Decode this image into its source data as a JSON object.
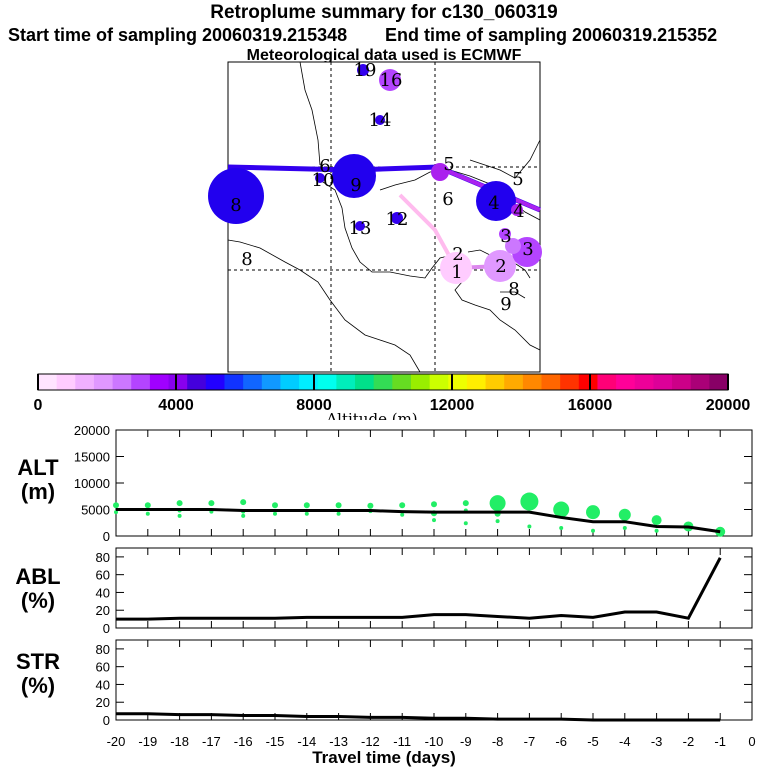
{
  "header": {
    "title": "Retroplume summary for c130_060319",
    "start_sampling": "Start time of sampling 20060319.215348",
    "end_sampling": "End time of sampling 20060319.215352",
    "meteo": "Meteorological data used is ECMWF"
  },
  "colorbar": {
    "label": "Altitude (m)",
    "min": 0,
    "max": 20000,
    "ticks": [
      "0",
      "4000",
      "8000",
      "12000",
      "16000",
      "20000"
    ],
    "colors": [
      "#ffe4ff",
      "#ffccff",
      "#f0b0ff",
      "#e098ff",
      "#cc77ff",
      "#b444ff",
      "#a000ff",
      "#8800ee",
      "#4400dd",
      "#2200ff",
      "#1133ff",
      "#1166ff",
      "#1199ff",
      "#00ccff",
      "#00eeff",
      "#00ffee",
      "#00eebb",
      "#00e08a",
      "#33dd55",
      "#66dd22",
      "#99ee00",
      "#ccff00",
      "#eeff00",
      "#ffee00",
      "#ffcc00",
      "#ffaa00",
      "#ff8800",
      "#ff6600",
      "#ff3300",
      "#ff0000",
      "#ff0077",
      "#ff0099",
      "#ee0099",
      "#dd0099",
      "#cc0088",
      "#aa0077",
      "#880066"
    ]
  },
  "map_labels": [
    {
      "text": "19",
      "alt": 3500
    },
    {
      "text": "16",
      "alt": 3000
    },
    {
      "text": "14",
      "alt": 3500
    },
    {
      "text": "6",
      "alt": 2500
    },
    {
      "text": "10",
      "alt": 3500
    },
    {
      "text": "9",
      "alt": 4000
    },
    {
      "text": "8",
      "alt": 4500
    },
    {
      "text": "5",
      "alt": 2000
    },
    {
      "text": "5",
      "alt": 2000
    },
    {
      "text": "6",
      "alt": 2000
    },
    {
      "text": "4",
      "alt": 4000
    },
    {
      "text": "4",
      "alt": 2500
    },
    {
      "text": "13",
      "alt": 3500
    },
    {
      "text": "12",
      "alt": 3500
    },
    {
      "text": "3",
      "alt": 2500
    },
    {
      "text": "2",
      "alt": 1000
    },
    {
      "text": "3",
      "alt": 2500
    },
    {
      "text": "1",
      "alt": 800
    },
    {
      "text": "2",
      "alt": 2000
    },
    {
      "text": "8",
      "alt": 2000
    },
    {
      "text": "8",
      "alt": 2000
    },
    {
      "text": "9",
      "alt": 2000
    }
  ],
  "chart_data": [
    {
      "type": "scatter",
      "panel": "ALT",
      "ylabel": "ALT (m)",
      "ylim": [
        0,
        20000
      ],
      "yticks": [
        "0",
        "5000",
        "10000",
        "15000",
        "20000"
      ],
      "x": [
        -20,
        -19,
        -18,
        -17,
        -16,
        -15,
        -14,
        -13,
        -12,
        -11,
        -10,
        -9,
        -8,
        -7,
        -6,
        -5,
        -4,
        -3,
        -2,
        -1
      ],
      "median_line": [
        5000,
        5000,
        5000,
        5000,
        4800,
        4800,
        4800,
        4800,
        4800,
        4600,
        4500,
        4500,
        4500,
        4500,
        3500,
        2700,
        2700,
        1800,
        1700,
        800
      ],
      "particles": [
        {
          "x": -20,
          "y": 5800
        },
        {
          "x": -20,
          "y": 4500
        },
        {
          "x": -19,
          "y": 5800
        },
        {
          "x": -19,
          "y": 4200
        },
        {
          "x": -18,
          "y": 6200
        },
        {
          "x": -18,
          "y": 4800
        },
        {
          "x": -18,
          "y": 3800
        },
        {
          "x": -17,
          "y": 6200
        },
        {
          "x": -17,
          "y": 4600
        },
        {
          "x": -16,
          "y": 6400
        },
        {
          "x": -16,
          "y": 4600
        },
        {
          "x": -16,
          "y": 3800
        },
        {
          "x": -15,
          "y": 5800
        },
        {
          "x": -15,
          "y": 4200
        },
        {
          "x": -14,
          "y": 5800
        },
        {
          "x": -14,
          "y": 4200
        },
        {
          "x": -13,
          "y": 5800
        },
        {
          "x": -13,
          "y": 4200
        },
        {
          "x": -12,
          "y": 5700
        },
        {
          "x": -12,
          "y": 4700
        },
        {
          "x": -11,
          "y": 5800
        },
        {
          "x": -11,
          "y": 4000
        },
        {
          "x": -10,
          "y": 6000
        },
        {
          "x": -10,
          "y": 4300
        },
        {
          "x": -10,
          "y": 3000
        },
        {
          "x": -9,
          "y": 6200
        },
        {
          "x": -9,
          "y": 4800
        },
        {
          "x": -9,
          "y": 2400
        },
        {
          "x": -8,
          "y": 6200
        },
        {
          "x": -8,
          "y": 4200
        },
        {
          "x": -8,
          "y": 2800
        },
        {
          "x": -7,
          "y": 6500
        },
        {
          "x": -7,
          "y": 1800
        },
        {
          "x": -6,
          "y": 5000
        },
        {
          "x": -6,
          "y": 1500
        },
        {
          "x": -5,
          "y": 4500
        },
        {
          "x": -5,
          "y": 1000
        },
        {
          "x": -4,
          "y": 4000
        },
        {
          "x": -4,
          "y": 1500
        },
        {
          "x": -3,
          "y": 3000
        },
        {
          "x": -3,
          "y": 1000
        },
        {
          "x": -2,
          "y": 1800
        },
        {
          "x": -1,
          "y": 800
        }
      ],
      "particle_sizes": [
        3,
        2,
        3,
        2,
        3,
        2,
        2,
        3,
        2,
        3,
        2,
        2,
        3,
        2,
        3,
        2,
        3,
        2,
        3,
        2,
        3,
        2,
        3,
        3,
        2,
        3,
        2,
        2,
        8,
        3,
        2,
        9,
        2,
        8,
        2,
        7,
        2,
        6,
        2,
        5,
        2,
        5,
        5
      ]
    },
    {
      "type": "line",
      "panel": "ABL",
      "ylabel": "ABL (%)",
      "ylim": [
        0,
        90
      ],
      "yticks": [
        "0",
        "20",
        "40",
        "60",
        "80"
      ],
      "x": [
        -20,
        -19,
        -18,
        -17,
        -16,
        -15,
        -14,
        -13,
        -12,
        -11,
        -10,
        -9,
        -8,
        -7,
        -6,
        -5,
        -4,
        -3,
        -2,
        -1
      ],
      "values": [
        10,
        10,
        11,
        11,
        11,
        11,
        12,
        12,
        12,
        12,
        15,
        15,
        13,
        11,
        14,
        12,
        18,
        18,
        11,
        79
      ]
    },
    {
      "type": "line",
      "panel": "STR",
      "ylabel": "STR (%)",
      "ylim": [
        0,
        90
      ],
      "yticks": [
        "0",
        "20",
        "40",
        "60",
        "80"
      ],
      "x": [
        -20,
        -19,
        -18,
        -17,
        -16,
        -15,
        -14,
        -13,
        -12,
        -11,
        -10,
        -9,
        -8,
        -7,
        -6,
        -5,
        -4,
        -3,
        -2,
        -1
      ],
      "values": [
        7,
        7,
        6,
        6,
        5,
        5,
        4,
        4,
        3,
        3,
        2,
        2,
        1,
        1,
        1,
        0,
        0,
        0,
        0,
        0
      ]
    }
  ],
  "xaxis": {
    "label": "Travel time (days)",
    "ticks": [
      "-20",
      "-19",
      "-18",
      "-17",
      "-16",
      "-15",
      "-14",
      "-13",
      "-12",
      "-11",
      "-10",
      "-9",
      "-8",
      "-7",
      "-6",
      "-5",
      "-4",
      "-3",
      "-2",
      "-1",
      "0"
    ]
  },
  "panel_labels": {
    "alt": "ALT",
    "alt_unit": "(m)",
    "abl": "ABL",
    "abl_unit": "(%)",
    "str": "STR",
    "str_unit": "(%)"
  }
}
